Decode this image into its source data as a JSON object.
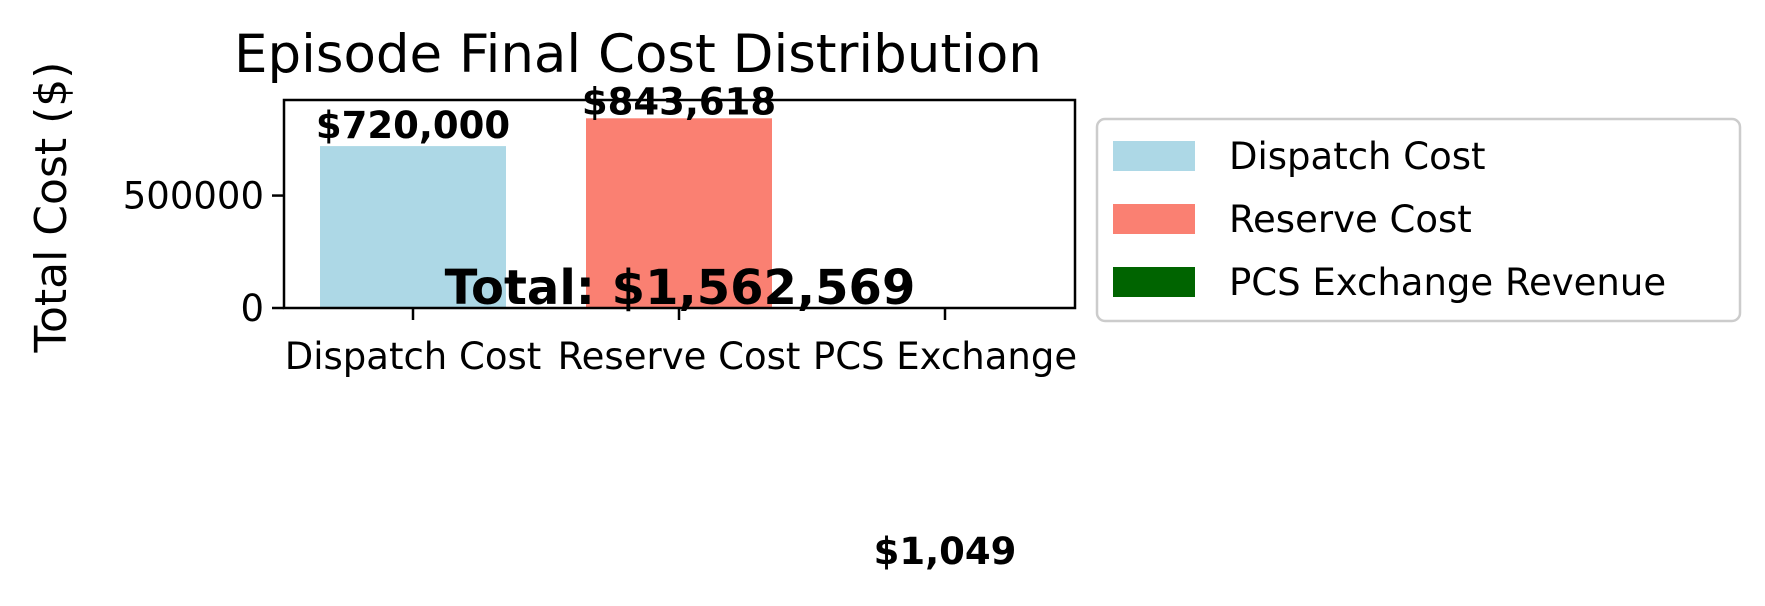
{
  "chart_data": {
    "type": "bar",
    "title": "Episode Final Cost Distribution",
    "xlabel": "",
    "ylabel": "Total Cost ($)",
    "categories": [
      "Dispatch Cost",
      "Reserve Cost",
      "PCS Exchange"
    ],
    "values": [
      720000,
      843618,
      -1049
    ],
    "colors": [
      "#add8e6",
      "#fa8072",
      "#006400"
    ],
    "data_labels": [
      "$720,000",
      "$843,618",
      "$1,049"
    ],
    "ylim": [
      0,
      925000
    ],
    "yticks": [
      0,
      500000
    ],
    "ytick_labels": [
      "0",
      "500000"
    ],
    "grid": false,
    "total_label": "Total: $1,562,569",
    "legend": {
      "placement": "outside-right",
      "entries": [
        {
          "label": "Dispatch Cost",
          "color": "#add8e6"
        },
        {
          "label": "Reserve Cost",
          "color": "#fa8072"
        },
        {
          "label": "PCS Exchange Revenue",
          "color": "#006400"
        }
      ]
    }
  }
}
